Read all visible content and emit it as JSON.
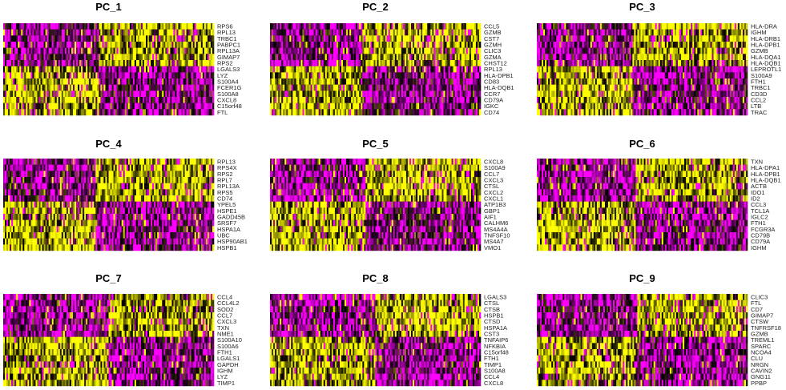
{
  "chart_data": {
    "type": "heatmap",
    "description": "PCA dim heatmaps: top genes per principal component (cells ordered by PC score)",
    "colors": {
      "low": "#ff00ff",
      "mid": "#000000",
      "high": "#ffff00"
    },
    "panels": [
      {
        "title": "PC_1",
        "genes": [
          "RPS6",
          "RPL13",
          "TRBC1",
          "PABPC1",
          "RPL13A",
          "GIMAP7",
          "RPS2",
          "LGALS3",
          "LYZ",
          "S100A4",
          "FCER1G",
          "S100A8",
          "CXCL8",
          "C15orf48",
          "FTL"
        ],
        "split": 0.45,
        "leftHigh": [
          false,
          false,
          false,
          false,
          false,
          false,
          false,
          true,
          true,
          true,
          true,
          true,
          true,
          true,
          true
        ]
      },
      {
        "title": "PC_2",
        "genes": [
          "CCL5",
          "GZMB",
          "CST7",
          "GZMH",
          "CLIC3",
          "GZMA",
          "CHST12",
          "RPL13",
          "HLA-DPB1",
          "CD83",
          "HLA-DQB1",
          "CCR7",
          "CD79A",
          "IGKC",
          "CD74"
        ],
        "split": 0.44,
        "leftHigh": [
          false,
          false,
          false,
          false,
          false,
          false,
          false,
          true,
          true,
          true,
          true,
          true,
          true,
          true,
          true
        ]
      },
      {
        "title": "PC_3",
        "genes": [
          "HLA-DRA",
          "IGHM",
          "HLA-DRB1",
          "HLA-DPB1",
          "GZMB",
          "HLA-DQA1",
          "HLA-DQB1",
          "LEPROTL1",
          "S100A9",
          "FTH1",
          "TRBC1",
          "CD3D",
          "CCL2",
          "LTB",
          "TRAC"
        ],
        "split": 0.45,
        "leftHigh": [
          false,
          false,
          false,
          false,
          false,
          false,
          false,
          true,
          true,
          true,
          true,
          true,
          true,
          true,
          true
        ]
      },
      {
        "title": "PC_4",
        "genes": [
          "RPL13",
          "RPS4X",
          "RPS2",
          "RPL7",
          "RPL13A",
          "RPS5",
          "CD74",
          "YPEL5",
          "HSPE1",
          "GADD45B",
          "SRSF7",
          "HSPA1A",
          "UBC",
          "HSP90AB1",
          "HSPB1"
        ],
        "split": 0.44,
        "leftHigh": [
          false,
          false,
          false,
          false,
          false,
          false,
          false,
          true,
          true,
          true,
          true,
          true,
          true,
          true,
          true
        ]
      },
      {
        "title": "PC_5",
        "genes": [
          "CXCL8",
          "S100A9",
          "CCL7",
          "CXCL3",
          "CTSL",
          "CXCL2",
          "CXCL1",
          "ATP1B3",
          "GBP1",
          "AIF1",
          "CALHM6",
          "MS4A4A",
          "TNFSF10",
          "MS4A7",
          "VMO1"
        ],
        "split": 0.45,
        "leftHigh": [
          false,
          false,
          false,
          false,
          false,
          false,
          false,
          true,
          true,
          true,
          true,
          true,
          true,
          true,
          true
        ]
      },
      {
        "title": "PC_6",
        "genes": [
          "TXN",
          "HLA-DPA1",
          "HLA-DPB1",
          "HLA-DQB1",
          "ACTB",
          "IDO1",
          "ID2",
          "CCL3",
          "TCL1A",
          "IGLC2",
          "FTH1",
          "FCGR3A",
          "CD79B",
          "CD79A",
          "IGHM"
        ],
        "split": 0.47,
        "leftHigh": [
          false,
          false,
          false,
          false,
          false,
          false,
          false,
          true,
          true,
          true,
          true,
          true,
          true,
          true,
          true
        ]
      },
      {
        "title": "PC_7",
        "genes": [
          "CCL4",
          "CCL4L2",
          "SOD2",
          "CCL7",
          "CXCL3",
          "TXN",
          "NME1",
          "S100A10",
          "S100A6",
          "FTH1",
          "LGALS1",
          "GAPDH",
          "IGHM",
          "LYZ",
          "TIMP1"
        ],
        "split": 0.5,
        "leftHigh": [
          false,
          false,
          false,
          false,
          false,
          false,
          false,
          true,
          true,
          true,
          true,
          true,
          true,
          true,
          true
        ]
      },
      {
        "title": "PC_8",
        "genes": [
          "LGALS3",
          "CTSL",
          "CTSB",
          "HSPB1",
          "CTSD",
          "HSPA1A",
          "CST3",
          "TNFAIP6",
          "NFKBIA",
          "C15orf48",
          "FTH1",
          "TIMP1",
          "S100A8",
          "CCL4",
          "CXCL8"
        ],
        "split": 0.5,
        "leftHigh": [
          false,
          false,
          false,
          false,
          false,
          false,
          false,
          true,
          true,
          true,
          true,
          true,
          true,
          true,
          true
        ]
      },
      {
        "title": "PC_9",
        "genes": [
          "CLIC3",
          "FTL",
          "CD7",
          "GIMAP7",
          "CTSW",
          "TNFRSF18",
          "GZMB",
          "TREML1",
          "SPARC",
          "NCOA4",
          "CLU",
          "NRGN",
          "CAVIN2",
          "GNG11",
          "PPBP"
        ],
        "split": 0.48,
        "leftHigh": [
          false,
          false,
          false,
          false,
          false,
          false,
          false,
          true,
          true,
          true,
          true,
          true,
          true,
          true,
          true
        ]
      }
    ]
  }
}
